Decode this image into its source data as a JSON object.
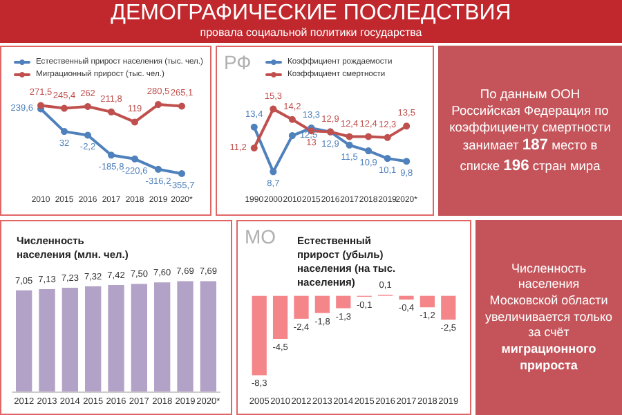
{
  "chart_data": [
    {
      "type": "other",
      "title": "ДЕМОГРАФИЧЕСКИЕ ПОСЛЕДСТВИЯ",
      "subtitle": "провала социальной политики государства"
    },
    {
      "type": "line",
      "categories": [
        "2010",
        "2015",
        "2016",
        "2017",
        "2018",
        "2019",
        "2020*"
      ],
      "legend": "top",
      "marker": "circle",
      "line_style": "solid",
      "series": [
        {
          "name": "Естественный прирост населения (тыс. чел.)",
          "color": "#4f81bd",
          "values": [
            239.6,
            32,
            -2.2,
            -185.8,
            -220.6,
            -316.2,
            -355.7
          ],
          "value_labels": [
            "239,6",
            "32",
            "-2,2",
            "-185,8",
            "-220,6",
            "-316,2",
            "-355,7"
          ]
        },
        {
          "name": "Миграционный прирост (тыс. чел.)",
          "color": "#c0504d",
          "values": [
            271.5,
            245.4,
            262,
            211.8,
            119,
            280.5,
            265.1
          ],
          "value_labels": [
            "271,5",
            "245,4",
            "262",
            "211,8",
            "119",
            "280,5",
            "265,1"
          ]
        }
      ]
    },
    {
      "type": "line",
      "categories": [
        "1990",
        "2000",
        "2010",
        "2015",
        "2016",
        "2017",
        "2018",
        "2019",
        "2020*"
      ],
      "legend": "top",
      "marker": "circle",
      "line_style": "solid",
      "annotations": [
        "РФ"
      ],
      "series": [
        {
          "name": "Коэффициент рождаемости",
          "color": "#4f81bd",
          "values": [
            13.4,
            8.7,
            12.5,
            13.3,
            12.9,
            11.5,
            10.9,
            10.1,
            9.8
          ],
          "value_labels": [
            "13,4",
            "8,7",
            "12,5",
            "13,3",
            "12,9",
            "11,5",
            "10,9",
            "10,1",
            "9,8"
          ]
        },
        {
          "name": "Коэффициент смертности",
          "color": "#c0504d",
          "values": [
            11.2,
            15.3,
            14.2,
            13,
            12.9,
            12.4,
            12.4,
            12.3,
            13.5
          ],
          "value_labels": [
            "11,2",
            "15,3",
            "14,2",
            "13",
            "12,9",
            "12,4",
            "12,4",
            "12,3",
            "13,5"
          ]
        }
      ]
    },
    {
      "type": "other",
      "annotations": [
        "По данным ООН Российская Федерация по коэффициенту смертности занимает 187 место в списке 196 стран мира"
      ]
    },
    {
      "type": "bar",
      "title": "Численность населения (млн. чел.)",
      "categories": [
        "2012",
        "2013",
        "2014",
        "2015",
        "2016",
        "2017",
        "2018",
        "2019",
        "2020*"
      ],
      "color": "#b3a2c7",
      "values": [
        7.05,
        7.13,
        7.23,
        7.32,
        7.42,
        7.5,
        7.6,
        7.69,
        7.69
      ],
      "value_labels": [
        "7,05",
        "7,13",
        "7,23",
        "7,32",
        "7,42",
        "7,50",
        "7,60",
        "7,69",
        "7,69"
      ]
    },
    {
      "type": "bar",
      "title": "Естественный прирост (убыль) населения (на тыс. населения)",
      "annotations": [
        "МО"
      ],
      "categories": [
        "2005",
        "2010",
        "2012",
        "2013",
        "2014",
        "2015",
        "2016",
        "2017",
        "2018",
        "2019"
      ],
      "color": "#f4868a",
      "values": [
        -8.3,
        -4.5,
        -2.4,
        -1.8,
        -1.3,
        -0.1,
        0.1,
        -0.4,
        -1.2,
        -2.5
      ],
      "value_labels": [
        "-8,3",
        "-4,5",
        "-2,4",
        "-1,8",
        "-1,3",
        "-0,1",
        "0,1",
        "-0,4",
        "-1,2",
        "-2,5"
      ]
    },
    {
      "type": "other",
      "annotations": [
        "Численность населения Московской области увеличивается только за счёт",
        "миграционного прироста"
      ]
    }
  ]
}
